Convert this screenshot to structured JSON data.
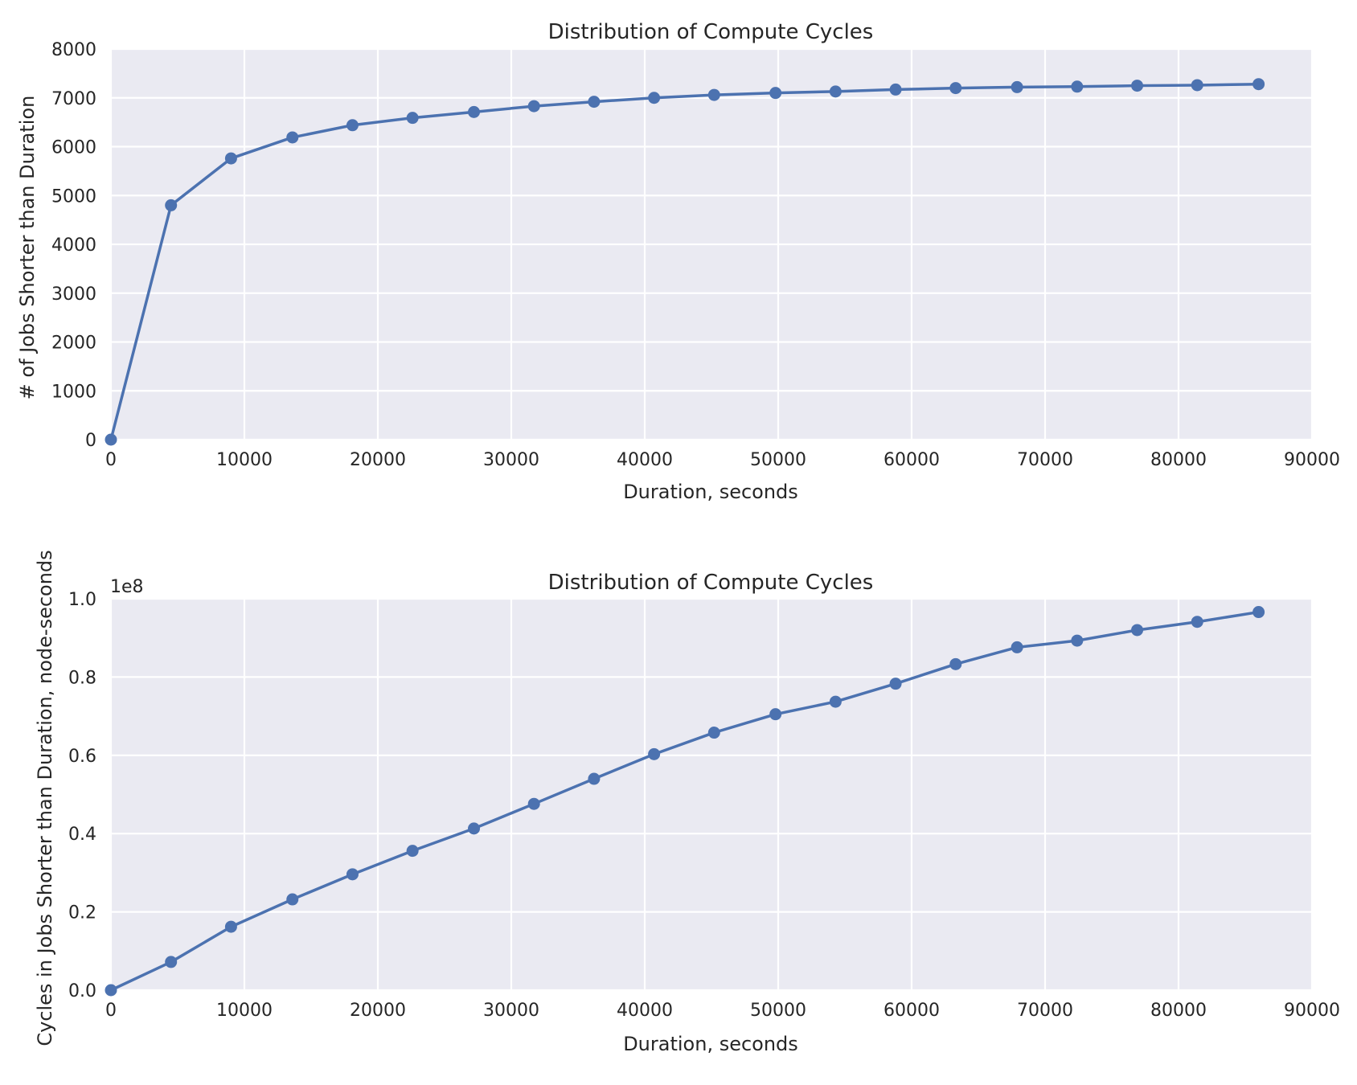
{
  "chart_data": [
    {
      "type": "line",
      "title": "Distribution of Compute Cycles",
      "xlabel": "Duration, seconds",
      "ylabel": "# of Jobs Shorter than Duration",
      "xlim": [
        0,
        90000
      ],
      "ylim": [
        0,
        8000
      ],
      "x_ticks": [
        "0",
        "10000",
        "20000",
        "30000",
        "40000",
        "50000",
        "60000",
        "70000",
        "80000",
        "90000"
      ],
      "y_ticks": [
        "0",
        "1000",
        "2000",
        "3000",
        "4000",
        "5000",
        "6000",
        "7000",
        "8000"
      ],
      "grid": true,
      "color": "#4c72b0",
      "series": [
        {
          "x": [
            0,
            4500,
            9000,
            13600,
            18100,
            22600,
            27200,
            31700,
            36200,
            40700,
            45200,
            49800,
            54300,
            58800,
            63300,
            67900,
            72400,
            76900,
            81400,
            86000
          ],
          "y": [
            0,
            4800,
            5760,
            6190,
            6440,
            6590,
            6710,
            6830,
            6920,
            7000,
            7060,
            7100,
            7130,
            7170,
            7200,
            7220,
            7230,
            7250,
            7260,
            7280
          ]
        }
      ]
    },
    {
      "type": "line",
      "title": "Distribution of Compute Cycles",
      "xlabel": "Duration, seconds",
      "ylabel": "Cycles in Jobs Shorter than Duration, node-seconds",
      "offset_label": "1e8",
      "xlim": [
        0,
        90000
      ],
      "ylim": [
        0,
        1.0
      ],
      "x_ticks": [
        "0",
        "10000",
        "20000",
        "30000",
        "40000",
        "50000",
        "60000",
        "70000",
        "80000",
        "90000"
      ],
      "y_ticks": [
        "0.0",
        "0.2",
        "0.4",
        "0.6",
        "0.8",
        "1.0"
      ],
      "grid": true,
      "color": "#4c72b0",
      "series": [
        {
          "x": [
            0,
            4500,
            9000,
            13600,
            18100,
            22600,
            27200,
            31700,
            36200,
            40700,
            45200,
            49800,
            54300,
            58800,
            63300,
            67900,
            72400,
            76900,
            81400,
            86000
          ],
          "y": [
            0,
            0.072,
            0.162,
            0.232,
            0.296,
            0.356,
            0.413,
            0.476,
            0.54,
            0.603,
            0.658,
            0.705,
            0.737,
            0.783,
            0.833,
            0.876,
            0.893,
            0.92,
            0.941,
            0.966
          ]
        }
      ]
    }
  ]
}
